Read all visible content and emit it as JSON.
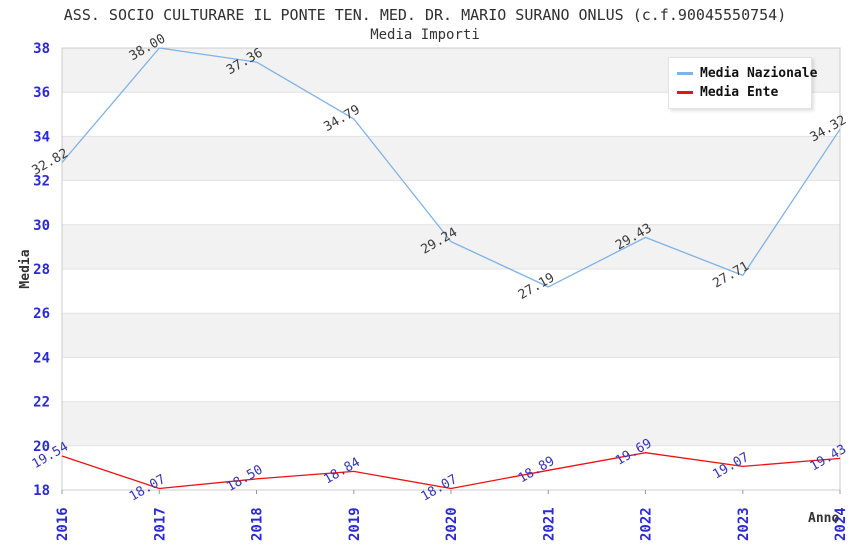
{
  "header": {
    "title": "ASS. SOCIO CULTURARE IL PONTE TEN. MED. DR. MARIO SURANO ONLUS (c.f.90045550754)",
    "subtitle": "Media Importi"
  },
  "chart_data": {
    "type": "line",
    "title": "ASS. SOCIO CULTURARE IL PONTE TEN. MED. DR. MARIO SURANO ONLUS (c.f.90045550754)",
    "subtitle": "Media Importi",
    "x": [
      "2016",
      "2017",
      "2018",
      "2019",
      "2020",
      "2021",
      "2022",
      "2023",
      "2024"
    ],
    "xlabel": "Anno",
    "ylabel": "Media",
    "ylim": [
      18,
      38
    ],
    "ytick_step": 2,
    "grid": "horizontal gridlines with alternating shaded bands",
    "legend_position": "top-right",
    "series": [
      {
        "name": "Media Nazionale",
        "color": "#7fb2e5",
        "label_color": "#3a3a3a",
        "values": [
          32.82,
          38.0,
          37.36,
          34.79,
          29.24,
          27.19,
          29.43,
          27.71,
          34.32
        ]
      },
      {
        "name": "Media Ente",
        "color": "#ee1111",
        "label_color": "#3434b8",
        "values": [
          19.54,
          18.07,
          18.5,
          18.84,
          18.07,
          18.89,
          19.69,
          19.07,
          19.43
        ]
      }
    ],
    "style": {
      "tick_color": "#2a2ad4",
      "band_colors": [
        "#f2f2f2",
        "#ffffff"
      ],
      "grid_color": "#e2e2e2",
      "border_color": "#cccccc",
      "tick_mark_color": "#999999",
      "title_color": "#2f2f2f",
      "axis_title_color": "#333333"
    }
  }
}
